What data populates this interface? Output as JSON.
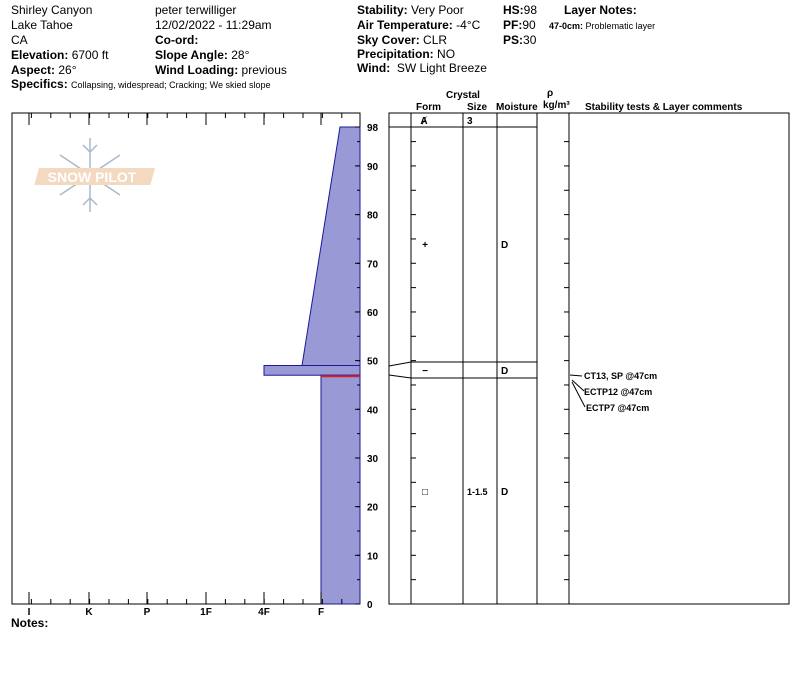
{
  "header": {
    "location": "Shirley Canyon",
    "range": "Lake Tahoe",
    "state": "CA",
    "elevation_label": "Elevation:",
    "elevation": "6700 ft",
    "aspect_label": "Aspect:",
    "aspect": "26°",
    "specifics_label": "Specifics:",
    "specifics": "Collapsing, widespread; Cracking; We skied slope",
    "observer": "peter terwilliger",
    "datetime": "12/02/2022 - 11:29am",
    "coord_label": "Co-ord:",
    "slope_label": "Slope Angle:",
    "slope": "28°",
    "wind_loading_label": "Wind Loading:",
    "wind_loading": "previous",
    "stability_label": "Stability:",
    "stability": "Very Poor",
    "air_temp_label": "Air Temperature:",
    "air_temp": "-4°C",
    "sky_label": "Sky Cover:",
    "sky": "CLR",
    "precip_label": "Precipitation:",
    "precip": "NO",
    "wind_label": "Wind:",
    "wind": "SW Light Breeze",
    "hs_label": "HS:",
    "hs": "98",
    "pf_label": "PF:",
    "pf": "90",
    "ps_label": "PS:",
    "ps": "30",
    "layer_notes_label": "Layer Notes:",
    "layer_note_range": "47-0cm:",
    "layer_note": "Problematic layer"
  },
  "logo": "SNOW PILOT",
  "table_headers": {
    "crystal": "Crystal",
    "form": "Form",
    "size": "Size",
    "moisture": "Moisture",
    "rho": "ρ",
    "density_unit": "kg/m³",
    "comments": "Stability tests & Layer comments"
  },
  "hardness_axis": [
    "I",
    "K",
    "P",
    "1F",
    "4F",
    "F"
  ],
  "height_axis": [
    "98",
    "90",
    "80",
    "70",
    "60",
    "50",
    "40",
    "30",
    "20",
    "10",
    "0"
  ],
  "layers": [
    {
      "top": 98,
      "bottom": 49,
      "hardness_top": "F-",
      "hardness_bottom": "4F+"
    },
    {
      "top": 49,
      "bottom": 47,
      "hardness": "4F"
    },
    {
      "top": 47,
      "bottom": 0,
      "hardness": "F"
    }
  ],
  "grain_rows": [
    {
      "form": "Ⱥ",
      "size": "3",
      "moisture": ""
    },
    {
      "form": "+",
      "size": "",
      "moisture": "D"
    },
    {
      "form": "−",
      "size": "",
      "moisture": "D"
    },
    {
      "form": "□",
      "size": "1-1.5",
      "moisture": "D"
    }
  ],
  "tests": [
    "CT13, SP @47cm",
    "ECTP12 @47cm",
    "ECTP7 @47cm"
  ],
  "notes_label": "Notes:",
  "colors": {
    "hardness_fill": "#9999d6",
    "hardness_stroke": "#1a1a9a",
    "weak_layer": "#d0202a"
  }
}
